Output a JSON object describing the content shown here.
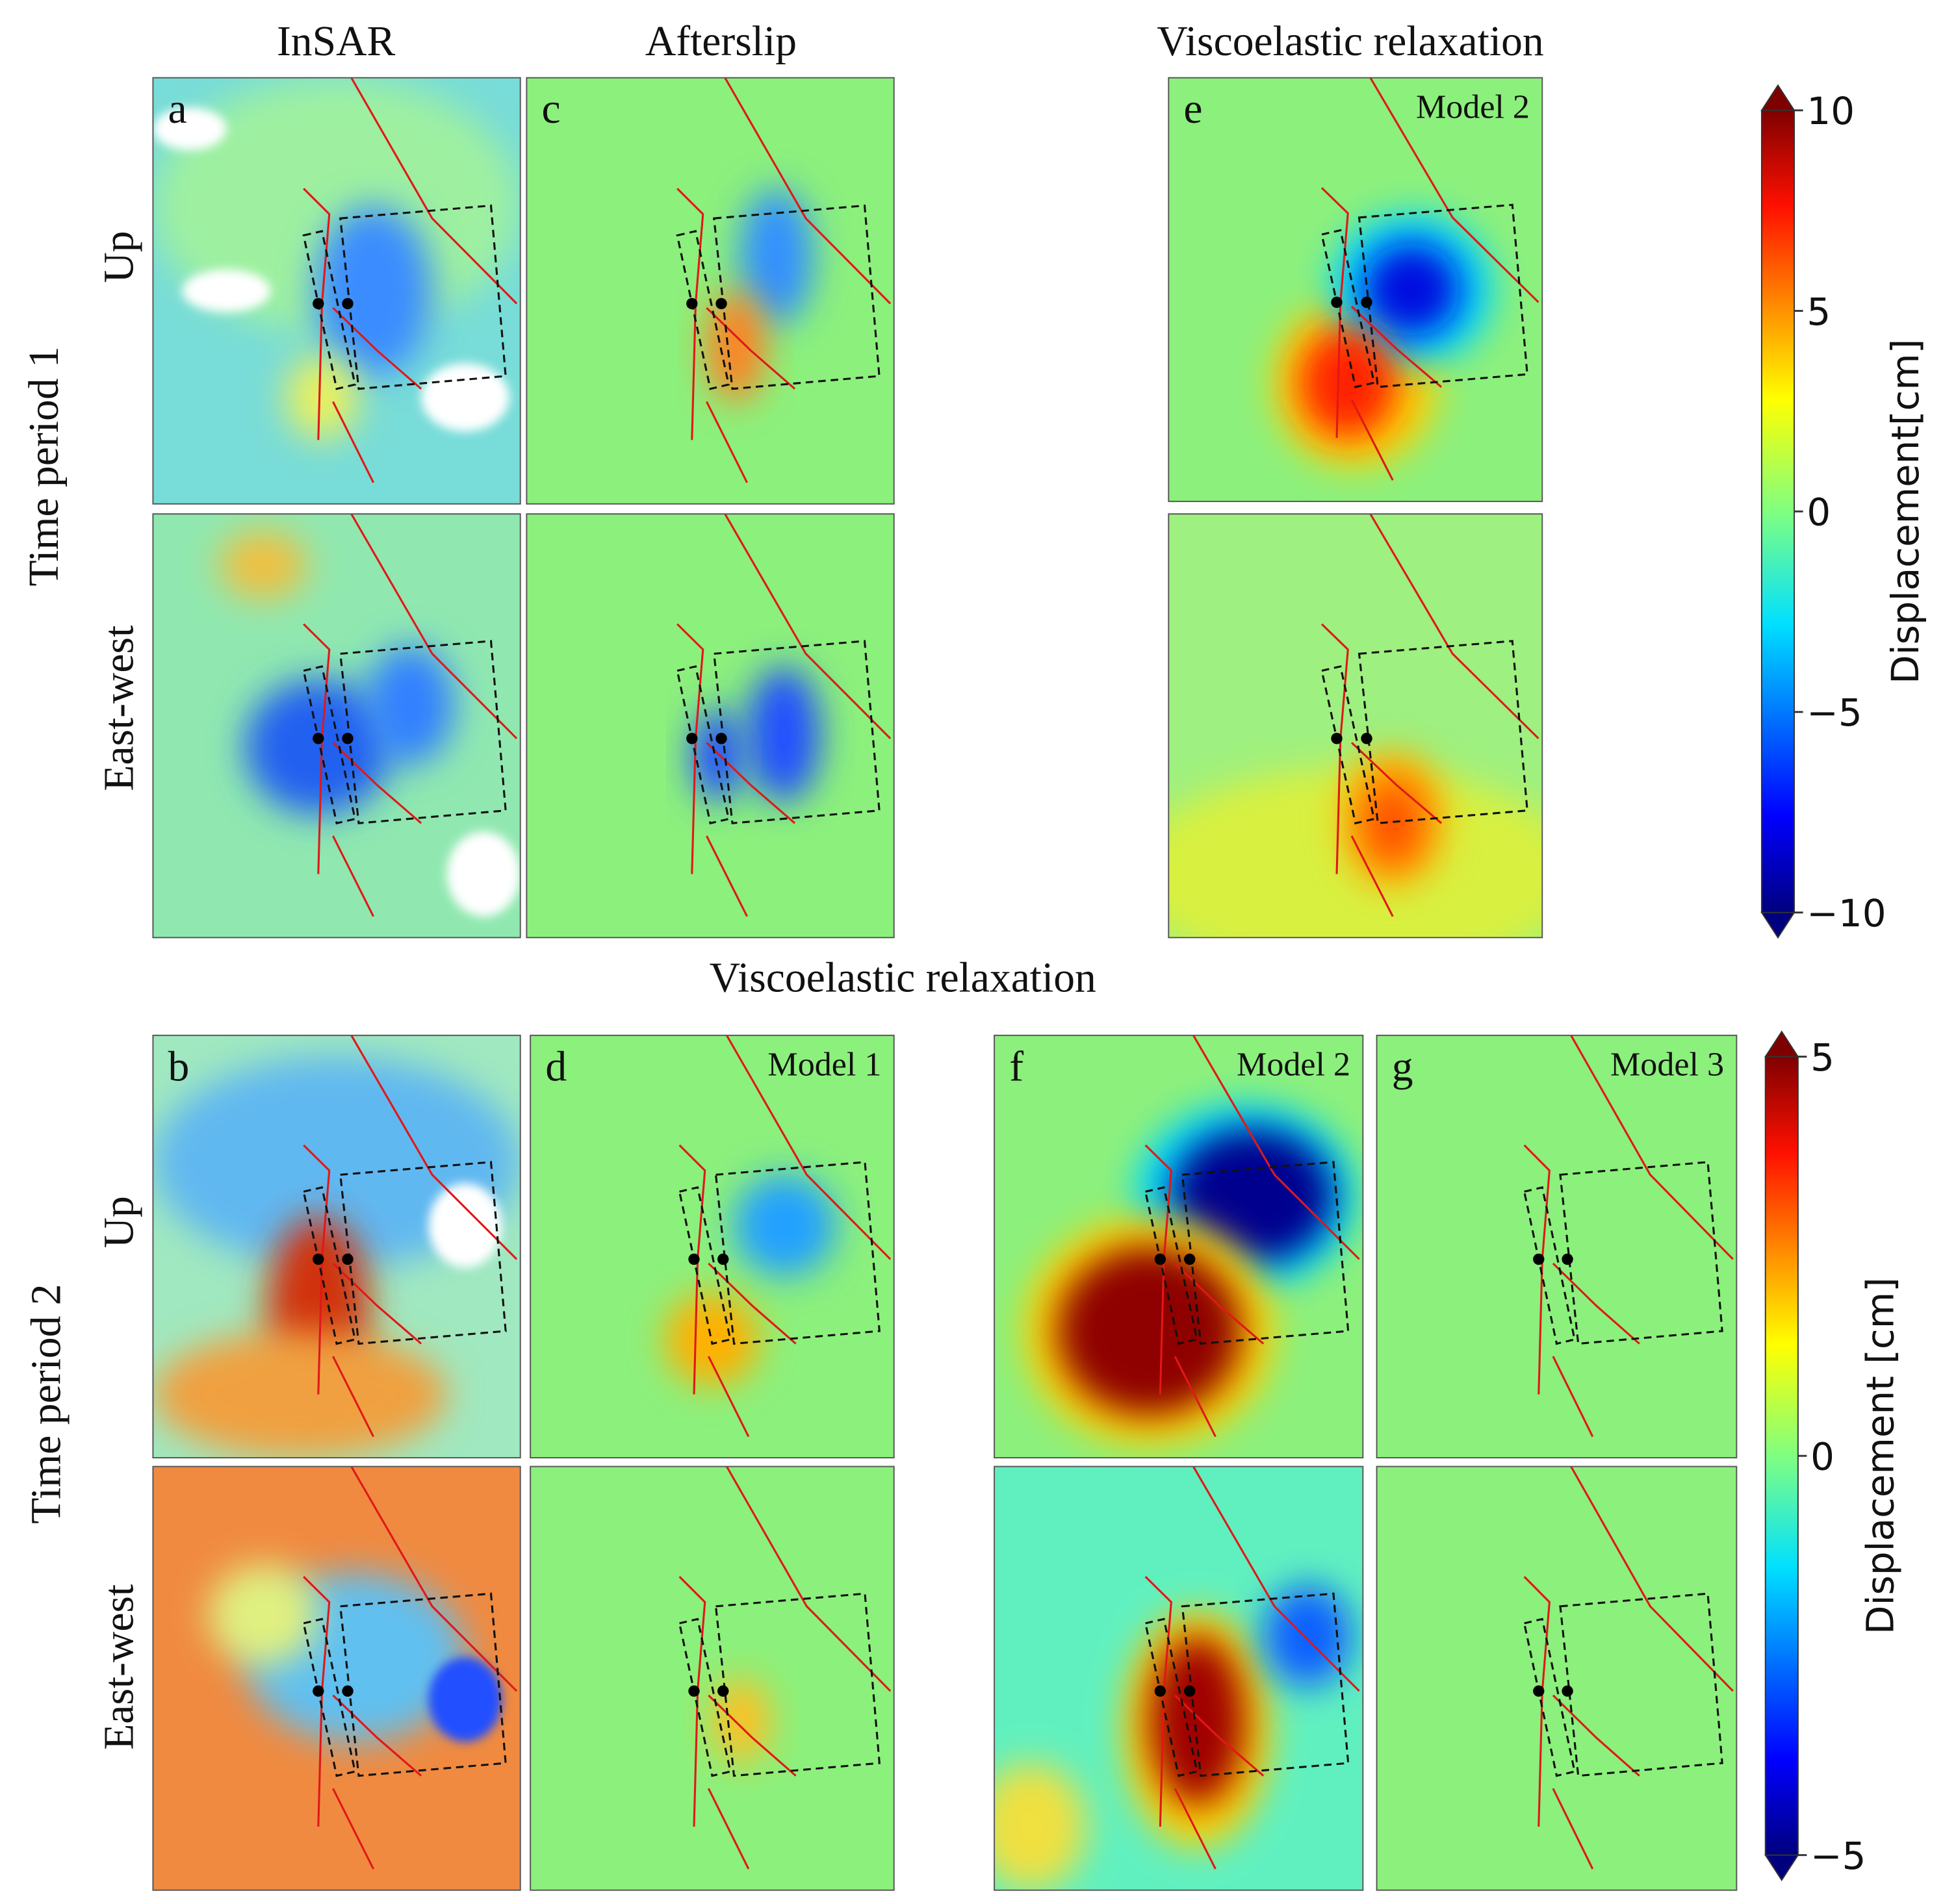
{
  "column_titles": [
    "InSAR",
    "Afterslip",
    "Viscoelastic relaxation"
  ],
  "subtitle": "Viscoelastic relaxation",
  "row_groups": [
    {
      "label": "Time period 1",
      "rows": [
        "Up",
        "East-west"
      ]
    },
    {
      "label": "Time period 2",
      "rows": [
        "Up",
        "East-west"
      ]
    }
  ],
  "panels": [
    {
      "letter": "a"
    },
    {
      "letter": "c"
    },
    {
      "letter": "e",
      "model": "Model 2"
    },
    {
      "letter": "b"
    },
    {
      "letter": "d",
      "model": "Model 1"
    },
    {
      "letter": "f",
      "model": "Model 2"
    },
    {
      "letter": "g",
      "model": "Model 3"
    }
  ],
  "colorbars": [
    {
      "label": "Displacement[cm]",
      "lim": [
        -10,
        10
      ],
      "ticks": [
        10,
        5,
        0,
        {
          "value": -5,
          "label": "−5"
        },
        {
          "value": -10,
          "label": "−10"
        }
      ]
    },
    {
      "label": "Displacement [cm]",
      "lim": [
        -5,
        5
      ],
      "ticks": [
        5,
        0,
        {
          "value": -5,
          "label": "−5"
        }
      ]
    }
  ]
}
